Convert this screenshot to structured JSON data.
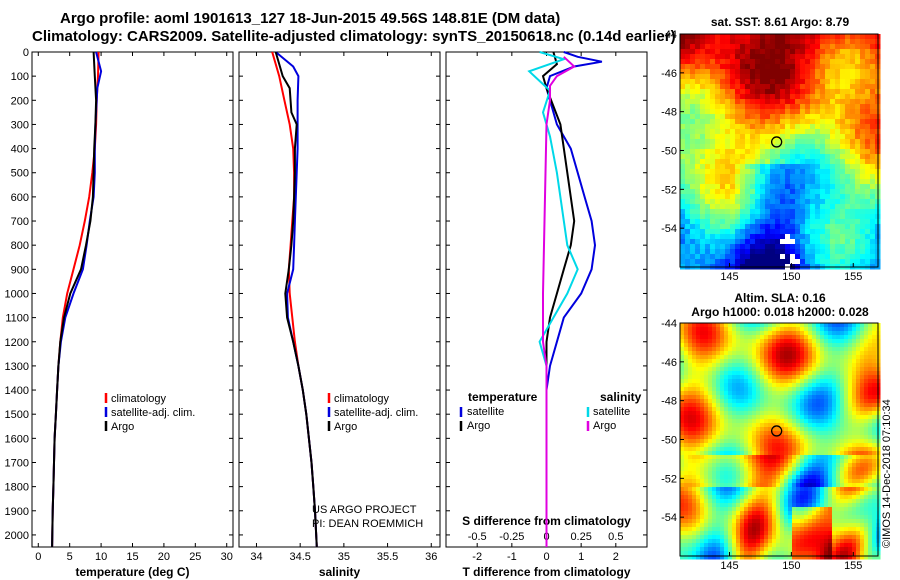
{
  "header": {
    "line1": "Argo profile: aoml 1901613_127 18-Jun-2015 49.56S 148.81E (DM data)",
    "line2": "Climatology: CARS2009. Satellite-adjusted climatology: synTS_20150618.nc (0.14d earlier)"
  },
  "credit": {
    "project": "US ARGO PROJECT",
    "pi": "PI: DEAN ROEMMICH",
    "imos": "©IMOS 14-Dec-2018 07:10:34"
  },
  "colors": {
    "climatology": "#ff0000",
    "satellite": "#0000dd",
    "argo": "#000000",
    "sat_salinity": "#00d8e8",
    "clim_salinity": "#e000e0"
  },
  "chart_data": [
    {
      "type": "line",
      "id": "temperature",
      "xlabel": "temperature (deg C)",
      "ylabel": "",
      "xlim": [
        -1,
        31
      ],
      "ylim": [
        2050,
        0
      ],
      "xticks": [
        0,
        5,
        10,
        15,
        20,
        25,
        30
      ],
      "yticks": [
        0,
        100,
        200,
        300,
        400,
        500,
        600,
        700,
        800,
        900,
        1000,
        1100,
        1200,
        1300,
        1400,
        1500,
        1600,
        1700,
        1800,
        1900,
        2000
      ],
      "ytick_labels": [
        "0",
        "100",
        "200",
        "300",
        "400",
        "500",
        "600",
        "700",
        "800",
        "900",
        "1000",
        "1100",
        "1200",
        "1300",
        "1400",
        "1500",
        "1600",
        "1700",
        "1800",
        "1900",
        "2000"
      ],
      "legend": [
        "climatology",
        "satellite-adj. clim.",
        "Argo"
      ],
      "series": [
        {
          "name": "climatology",
          "color": "#ff0000",
          "points": [
            [
              9.6,
              0
            ],
            [
              9.5,
              100
            ],
            [
              9.3,
              200
            ],
            [
              9.2,
              300
            ],
            [
              9.0,
              400
            ],
            [
              8.6,
              500
            ],
            [
              8.1,
              600
            ],
            [
              7.4,
              700
            ],
            [
              6.6,
              800
            ],
            [
              5.6,
              900
            ],
            [
              4.6,
              1000
            ],
            [
              3.9,
              1100
            ],
            [
              3.5,
              1200
            ],
            [
              3.2,
              1300
            ],
            [
              3.0,
              1400
            ],
            [
              2.8,
              1500
            ],
            [
              2.6,
              1600
            ],
            [
              2.5,
              1700
            ],
            [
              2.4,
              1800
            ],
            [
              2.3,
              1900
            ],
            [
              2.2,
              2050
            ]
          ]
        },
        {
          "name": "satellite-adj. clim.",
          "color": "#0000dd",
          "points": [
            [
              9.2,
              0
            ],
            [
              10.0,
              80
            ],
            [
              9.4,
              150
            ],
            [
              9.3,
              200
            ],
            [
              9.1,
              300
            ],
            [
              9.0,
              400
            ],
            [
              9.0,
              500
            ],
            [
              8.8,
              600
            ],
            [
              8.2,
              700
            ],
            [
              7.7,
              800
            ],
            [
              7.1,
              900
            ],
            [
              5.6,
              1000
            ],
            [
              4.3,
              1100
            ],
            [
              3.6,
              1200
            ],
            [
              3.2,
              1300
            ],
            [
              3.0,
              1400
            ],
            [
              2.8,
              1500
            ],
            [
              2.6,
              1600
            ],
            [
              2.5,
              1700
            ],
            [
              2.4,
              1800
            ],
            [
              2.3,
              1900
            ],
            [
              2.2,
              2050
            ]
          ]
        },
        {
          "name": "Argo",
          "color": "#000000",
          "points": [
            [
              8.8,
              0
            ],
            [
              9.0,
              100
            ],
            [
              9.2,
              200
            ],
            [
              9.1,
              300
            ],
            [
              8.9,
              400
            ],
            [
              8.8,
              500
            ],
            [
              8.7,
              600
            ],
            [
              8.3,
              700
            ],
            [
              7.6,
              800
            ],
            [
              6.8,
              900
            ],
            [
              5.1,
              1000
            ],
            [
              4.1,
              1100
            ],
            [
              3.5,
              1200
            ],
            [
              3.2,
              1300
            ],
            [
              3.0,
              1400
            ],
            [
              2.8,
              1500
            ],
            [
              2.6,
              1600
            ],
            [
              2.5,
              1700
            ],
            [
              2.4,
              1800
            ],
            [
              2.3,
              1900
            ],
            [
              2.2,
              2050
            ]
          ]
        }
      ]
    },
    {
      "type": "line",
      "id": "salinity",
      "xlabel": "salinity",
      "xlim": [
        33.8,
        36.1
      ],
      "ylim": [
        2050,
        0
      ],
      "xticks": [
        34,
        34.5,
        35,
        35.5,
        36
      ],
      "legend": [
        "climatology",
        "satellite-adj. clim.",
        "Argo"
      ],
      "series": [
        {
          "name": "climatology",
          "color": "#ff0000",
          "points": [
            [
              34.18,
              0
            ],
            [
              34.26,
              100
            ],
            [
              34.32,
              200
            ],
            [
              34.38,
              300
            ],
            [
              34.42,
              400
            ],
            [
              34.43,
              500
            ],
            [
              34.43,
              600
            ],
            [
              34.41,
              700
            ],
            [
              34.39,
              800
            ],
            [
              34.37,
              900
            ],
            [
              34.38,
              1000
            ],
            [
              34.41,
              1100
            ],
            [
              34.44,
              1200
            ],
            [
              34.48,
              1300
            ],
            [
              34.53,
              1400
            ],
            [
              34.57,
              1500
            ],
            [
              34.6,
              1600
            ],
            [
              34.63,
              1700
            ],
            [
              34.65,
              1800
            ],
            [
              34.67,
              1900
            ],
            [
              34.69,
              2050
            ]
          ]
        },
        {
          "name": "satellite-adj. clim.",
          "color": "#0000dd",
          "points": [
            [
              34.22,
              0
            ],
            [
              34.42,
              60
            ],
            [
              34.48,
              100
            ],
            [
              34.47,
              200
            ],
            [
              34.47,
              300
            ],
            [
              34.47,
              400
            ],
            [
              34.46,
              500
            ],
            [
              34.45,
              600
            ],
            [
              34.44,
              700
            ],
            [
              34.43,
              800
            ],
            [
              34.42,
              900
            ],
            [
              34.35,
              1000
            ],
            [
              34.36,
              1100
            ],
            [
              34.42,
              1200
            ],
            [
              34.48,
              1300
            ],
            [
              34.53,
              1400
            ],
            [
              34.57,
              1500
            ],
            [
              34.6,
              1600
            ],
            [
              34.63,
              1700
            ],
            [
              34.65,
              1800
            ],
            [
              34.67,
              1900
            ],
            [
              34.69,
              2050
            ]
          ]
        },
        {
          "name": "Argo",
          "color": "#000000",
          "points": [
            [
              34.22,
              0
            ],
            [
              34.3,
              100
            ],
            [
              34.38,
              150
            ],
            [
              34.4,
              250
            ],
            [
              34.46,
              300
            ],
            [
              34.44,
              400
            ],
            [
              34.44,
              500
            ],
            [
              34.43,
              600
            ],
            [
              34.42,
              700
            ],
            [
              34.4,
              800
            ],
            [
              34.37,
              900
            ],
            [
              34.33,
              1000
            ],
            [
              34.35,
              1100
            ],
            [
              34.42,
              1200
            ],
            [
              34.48,
              1300
            ],
            [
              34.53,
              1400
            ],
            [
              34.57,
              1500
            ],
            [
              34.6,
              1600
            ],
            [
              34.63,
              1700
            ],
            [
              34.65,
              1800
            ],
            [
              34.67,
              1900
            ],
            [
              34.69,
              2050
            ]
          ]
        }
      ]
    },
    {
      "type": "line",
      "id": "differences",
      "xlabel": "T difference from climatology",
      "xlabel2": "S difference from climatology",
      "xlim": [
        -2.9,
        2.9
      ],
      "ylim": [
        2050,
        0
      ],
      "xticks": [
        -2,
        -1,
        0,
        1,
        2
      ],
      "xticks_S": [
        "-0.5",
        "-0.25",
        "0",
        "0.25",
        "0.5"
      ],
      "legend_left": {
        "title": "temperature",
        "items": [
          "satellite",
          "Argo"
        ]
      },
      "legend_right": {
        "title": "salinity",
        "items": [
          "satellite",
          "Argo"
        ]
      },
      "series": [
        {
          "name": "T satellite",
          "color": "#0000dd",
          "points": [
            [
              0.5,
              0
            ],
            [
              0.9,
              20
            ],
            [
              1.6,
              40
            ],
            [
              0.8,
              60
            ],
            [
              0.1,
              100
            ],
            [
              0,
              150
            ],
            [
              0.1,
              200
            ],
            [
              0.3,
              300
            ],
            [
              0.7,
              400
            ],
            [
              0.9,
              500
            ],
            [
              1.1,
              600
            ],
            [
              1.3,
              700
            ],
            [
              1.4,
              800
            ],
            [
              1.3,
              900
            ],
            [
              1.0,
              1000
            ],
            [
              0.5,
              1100
            ],
            [
              0.3,
              1200
            ],
            [
              0.1,
              1300
            ],
            [
              0,
              1400
            ],
            [
              0,
              1500
            ],
            [
              0,
              2050
            ]
          ]
        },
        {
          "name": "T Argo",
          "color": "#000000",
          "points": [
            [
              0.2,
              0
            ],
            [
              0.3,
              50
            ],
            [
              -0.1,
              100
            ],
            [
              0,
              150
            ],
            [
              0.4,
              300
            ],
            [
              0.6,
              500
            ],
            [
              0.8,
              700
            ],
            [
              0.7,
              800
            ],
            [
              0.5,
              900
            ],
            [
              0.3,
              1000
            ],
            [
              0.1,
              1100
            ],
            [
              0,
              1200
            ],
            [
              0,
              1300
            ],
            [
              0,
              1400
            ],
            [
              0,
              2050
            ]
          ]
        },
        {
          "name": "S satellite",
          "color": "#00d8e8",
          "points": [
            [
              -0.2,
              0
            ],
            [
              0.5,
              30
            ],
            [
              -0.5,
              80
            ],
            [
              -0.2,
              120
            ],
            [
              0.1,
              160
            ],
            [
              -0.1,
              250
            ],
            [
              0.1,
              350
            ],
            [
              0.3,
              500
            ],
            [
              0.6,
              800
            ],
            [
              0.9,
              900
            ],
            [
              0.6,
              1000
            ],
            [
              0.2,
              1100
            ],
            [
              -0.2,
              1200
            ],
            [
              0,
              1300
            ],
            [
              0,
              1400
            ],
            [
              0,
              2050
            ]
          ]
        },
        {
          "name": "S Argo",
          "color": "#e000e0",
          "points": [
            [
              0.5,
              20
            ],
            [
              0.8,
              60
            ],
            [
              0.3,
              100
            ],
            [
              0.1,
              140
            ],
            [
              0.1,
              200
            ],
            [
              0,
              300
            ],
            [
              -0.1,
              1000
            ],
            [
              -0.1,
              1200
            ],
            [
              0,
              1300
            ],
            [
              0,
              2050
            ]
          ]
        }
      ]
    },
    {
      "type": "heatmap",
      "id": "sst_map",
      "title": "sat. SST: 8.61 Argo: 8.79",
      "xticks": [
        145,
        150,
        155
      ],
      "yticks": [
        -44,
        -46,
        -48,
        -50,
        -52,
        -54
      ],
      "xlim": [
        141,
        157
      ],
      "ylim": [
        -56,
        -44
      ],
      "marker": {
        "lon": 148.81,
        "lat": -49.56
      }
    },
    {
      "type": "heatmap",
      "id": "sla_map",
      "title": "Altim. SLA: 0.16",
      "subtitle": "Argo h1000: 0.018 h2000: 0.028",
      "xticks": [
        145,
        150,
        155
      ],
      "yticks": [
        -44,
        -46,
        -48,
        -50,
        -52,
        -54
      ],
      "xlim": [
        141,
        157
      ],
      "ylim": [
        -56,
        -44
      ],
      "marker": {
        "lon": 148.81,
        "lat": -49.56
      }
    }
  ]
}
